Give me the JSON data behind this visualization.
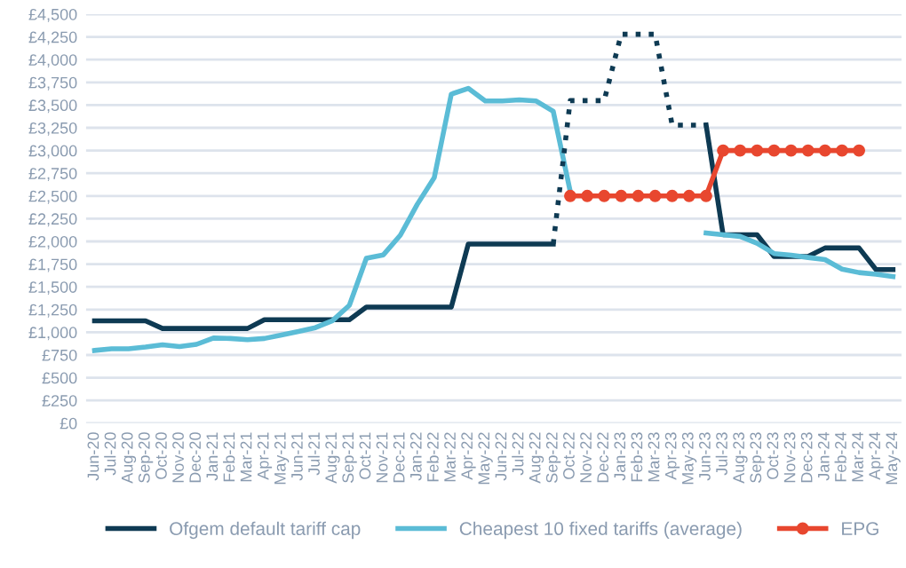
{
  "chart_data": {
    "type": "line",
    "categories": [
      "Jun-20",
      "Jul-20",
      "Aug-20",
      "Sep-20",
      "Oct-20",
      "Nov-20",
      "Dec-20",
      "Jan-21",
      "Feb-21",
      "Mar-21",
      "Apr-21",
      "May-21",
      "Jun-21",
      "Jul-21",
      "Aug-21",
      "Sep-21",
      "Oct-21",
      "Nov-21",
      "Dec-21",
      "Jan-22",
      "Feb-22",
      "Mar-22",
      "Apr-22",
      "May-22",
      "Jun-22",
      "Jul-22",
      "Aug-22",
      "Sep-22",
      "Oct-22",
      "Nov-22",
      "Dec-22",
      "Jan-23",
      "Feb-23",
      "Mar-23",
      "Apr-23",
      "May-23",
      "Jun-23",
      "Jul-23",
      "Aug-23",
      "Sep-23",
      "Oct-23",
      "Nov-23",
      "Dec-23",
      "Jan-24",
      "Feb-24",
      "Mar-24",
      "Apr-24",
      "May-24"
    ],
    "series": [
      {
        "name": "Ofgem default tariff cap",
        "color": "#0e3a53",
        "line_style": "solid",
        "marker": "none",
        "values": [
          1126,
          1126,
          1126,
          1126,
          1042,
          1042,
          1042,
          1042,
          1042,
          1042,
          1138,
          1138,
          1138,
          1138,
          1138,
          1138,
          1277,
          1277,
          1277,
          1277,
          1277,
          1277,
          1971,
          1971,
          1971,
          1971,
          1971,
          1971,
          null,
          null,
          null,
          null,
          null,
          null,
          null,
          null,
          3280,
          2074,
          2074,
          2074,
          1834,
          1834,
          1834,
          1928,
          1928,
          1928,
          1690,
          1690
        ]
      },
      {
        "name": "Cheapest 10 fixed tariffs (average)",
        "color": "#5bbcd6",
        "line_style": "solid",
        "marker": "none",
        "values": [
          800,
          818,
          818,
          837,
          862,
          843,
          867,
          937,
          932,
          918,
          932,
          970,
          1008,
          1051,
          1127,
          1297,
          1814,
          1852,
          2068,
          2409,
          2704,
          3621,
          3684,
          3545,
          3545,
          3557,
          3545,
          3432,
          2550,
          null,
          null,
          null,
          null,
          null,
          null,
          null,
          2093,
          2074,
          2055,
          1979,
          1866,
          1848,
          1823,
          1800,
          1695,
          1657,
          1638,
          1614
        ]
      },
      {
        "name": "EPG",
        "color": "#e8472f",
        "line_style": "solid",
        "marker": "circle",
        "values": [
          null,
          null,
          null,
          null,
          null,
          null,
          null,
          null,
          null,
          null,
          null,
          null,
          null,
          null,
          null,
          null,
          null,
          null,
          null,
          null,
          null,
          null,
          null,
          null,
          null,
          null,
          null,
          null,
          2500,
          2500,
          2500,
          2500,
          2500,
          2500,
          2500,
          2500,
          2500,
          3000,
          3000,
          3000,
          3000,
          3000,
          3000,
          3000,
          3000,
          3000,
          null,
          null
        ]
      },
      {
        "color": "#0e3a53",
        "line_style": "dotted",
        "marker": "none",
        "values": [
          null,
          null,
          null,
          null,
          null,
          null,
          null,
          null,
          null,
          null,
          null,
          null,
          null,
          null,
          null,
          null,
          null,
          null,
          null,
          null,
          null,
          null,
          null,
          null,
          null,
          null,
          null,
          1971,
          3549,
          3549,
          3549,
          4279,
          4279,
          4279,
          3280,
          3280,
          3280,
          null,
          null,
          null,
          null,
          null,
          null,
          null,
          null,
          null,
          null,
          null
        ]
      }
    ],
    "ylim": [
      0,
      4500
    ],
    "yticks": [
      {
        "value": 0,
        "label": "£0"
      },
      {
        "value": 250,
        "label": "£250"
      },
      {
        "value": 500,
        "label": "£500"
      },
      {
        "value": 750,
        "label": "£750"
      },
      {
        "value": 1000,
        "label": "£1,000"
      },
      {
        "value": 1250,
        "label": "£1,250"
      },
      {
        "value": 1500,
        "label": "£1,500"
      },
      {
        "value": 1750,
        "label": "£1,750"
      },
      {
        "value": 2000,
        "label": "£2,000"
      },
      {
        "value": 2250,
        "label": "£2,250"
      },
      {
        "value": 2500,
        "label": "£2,500"
      },
      {
        "value": 2750,
        "label": "£2,750"
      },
      {
        "value": 3000,
        "label": "£3,000"
      },
      {
        "value": 3250,
        "label": "£3,250"
      },
      {
        "value": 3500,
        "label": "£3,500"
      },
      {
        "value": 3750,
        "label": "£3,750"
      },
      {
        "value": 4000,
        "label": "£4,000"
      },
      {
        "value": 4250,
        "label": "£4,250"
      },
      {
        "value": 4500,
        "label": "£4,500"
      }
    ],
    "grid": "y",
    "legend": "bottom"
  }
}
